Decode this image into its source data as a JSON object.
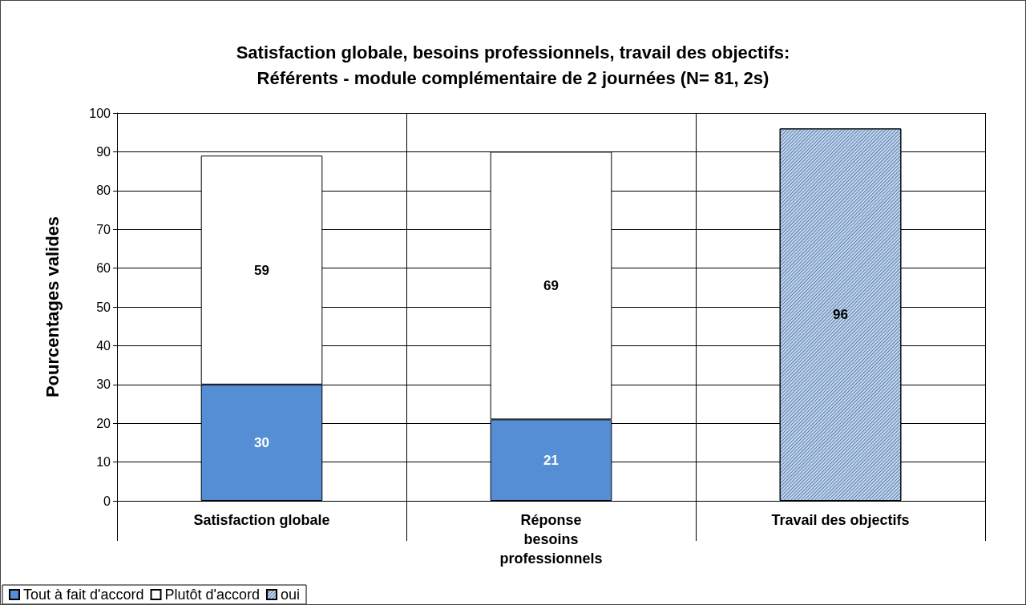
{
  "chart_data": {
    "type": "bar",
    "title": "Satisfaction globale, besoins professionnels, travail des objectifs:",
    "subtitle": "Référents - module complémentaire de 2 journées (N= 81, 2s)",
    "ylabel": "Pourcentages valides",
    "categories": [
      "Satisfaction globale",
      "Réponse\nbesoins\nprofessionnels",
      "Travail des objectifs"
    ],
    "series": [
      {
        "name": "Tout à fait d'accord",
        "color": "#558ed5",
        "values": [
          30,
          21,
          null
        ]
      },
      {
        "name": "Plutôt d'accord",
        "color": "#ffffff",
        "values": [
          59,
          69,
          null
        ]
      },
      {
        "name": "oui",
        "color": "#c6d9f1",
        "values": [
          null,
          null,
          96
        ]
      }
    ],
    "stacked": true,
    "data_labels": true,
    "ylim": [
      0,
      100
    ],
    "yticks": [
      0,
      10,
      20,
      30,
      40,
      50,
      60,
      70,
      80,
      90,
      100
    ],
    "grid": true,
    "legend": "bottom left"
  }
}
